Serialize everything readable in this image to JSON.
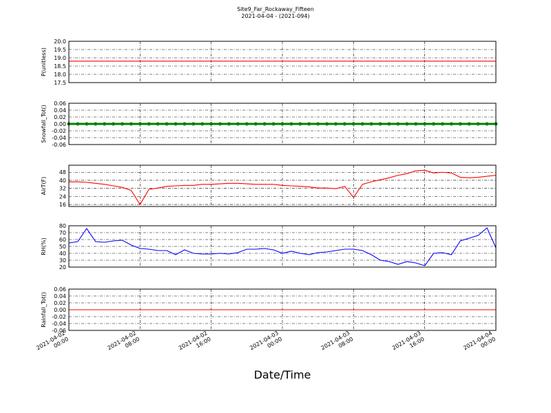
{
  "chart_data": {
    "title": "Site9_Far_Rockaway_Fifteen",
    "subtitle": "2021-04-04 - (2021-094)",
    "xlabel": "Date/Time",
    "xlim": [
      "2021-04-02 00:00",
      "2021-04-04 00:00"
    ],
    "xticks": [
      {
        "value": "2021-04-02 00:00",
        "label": "2021-04-02\n00:00"
      },
      {
        "value": "2021-04-02 08:00",
        "label": "2021-04-02\n08:00"
      },
      {
        "value": "2021-04-02 16:00",
        "label": "2021-04-02\n16:00"
      },
      {
        "value": "2021-04-03 00:00",
        "label": "2021-04-03\n00:00"
      },
      {
        "value": "2021-04-03 08:00",
        "label": "2021-04-03\n08:00"
      },
      {
        "value": "2021-04-03 16:00",
        "label": "2021-04-03\n16:00"
      },
      {
        "value": "2021-04-04 00:00",
        "label": "2021-04-04\n00:00"
      }
    ],
    "x": [
      "2021-04-02 00:00",
      "2021-04-02 01:00",
      "2021-04-02 02:00",
      "2021-04-02 03:00",
      "2021-04-02 04:00",
      "2021-04-02 05:00",
      "2021-04-02 06:00",
      "2021-04-02 07:00",
      "2021-04-02 08:00",
      "2021-04-02 09:00",
      "2021-04-02 10:00",
      "2021-04-02 11:00",
      "2021-04-02 12:00",
      "2021-04-02 13:00",
      "2021-04-02 14:00",
      "2021-04-02 15:00",
      "2021-04-02 16:00",
      "2021-04-02 17:00",
      "2021-04-02 18:00",
      "2021-04-02 19:00",
      "2021-04-02 20:00",
      "2021-04-02 21:00",
      "2021-04-02 22:00",
      "2021-04-02 23:00",
      "2021-04-03 00:00",
      "2021-04-03 01:00",
      "2021-04-03 02:00",
      "2021-04-03 03:00",
      "2021-04-03 04:00",
      "2021-04-03 05:00",
      "2021-04-03 06:00",
      "2021-04-03 07:00",
      "2021-04-03 08:00",
      "2021-04-03 09:00",
      "2021-04-03 10:00",
      "2021-04-03 11:00",
      "2021-04-03 12:00",
      "2021-04-03 13:00",
      "2021-04-03 14:00",
      "2021-04-03 15:00",
      "2021-04-03 16:00",
      "2021-04-03 17:00",
      "2021-04-03 18:00",
      "2021-04-03 19:00",
      "2021-04-03 20:00",
      "2021-04-03 21:00",
      "2021-04-03 22:00",
      "2021-04-03 23:00",
      "2021-04-04 00:00"
    ],
    "panels": [
      {
        "type": "line",
        "ylabel": "P(unitless)",
        "ylim": [
          17.5,
          20.0
        ],
        "yticks": [
          17.5,
          {
            "value": 18,
            "label": "18.0"
          },
          18.5,
          {
            "value": 19,
            "label": "19.0"
          },
          19.5,
          {
            "value": 20,
            "label": "20.0"
          }
        ],
        "series": [
          {
            "color": "#ff0000",
            "values": [
              18.8,
              18.8,
              18.8,
              18.8,
              18.8,
              18.8,
              18.8,
              18.8,
              18.8,
              18.8,
              18.8,
              18.8,
              18.8,
              18.8,
              18.8,
              18.8,
              18.8,
              18.8,
              18.8,
              18.8,
              18.8,
              18.8,
              18.8,
              18.8,
              18.8,
              18.8,
              18.8,
              18.8,
              18.8,
              18.8,
              18.8,
              18.8,
              18.8,
              18.8,
              18.8,
              18.8,
              18.8,
              18.8,
              18.8,
              18.8,
              18.8,
              18.8,
              18.8,
              18.8,
              18.8,
              18.8,
              18.8,
              18.8,
              18.8
            ]
          }
        ]
      },
      {
        "type": "line",
        "ylabel": "Snowfall_Tot()",
        "ylim": [
          -0.06,
          0.06
        ],
        "markers": true,
        "yticks": [
          {
            "value": -0.06,
            "label": "-0.06"
          },
          {
            "value": -0.04,
            "label": "-0.04"
          },
          {
            "value": -0.02,
            "label": "-0.02"
          },
          {
            "value": 0,
            "label": "0.00"
          },
          0.02,
          0.04,
          0.06
        ],
        "series": [
          {
            "color": "#008000",
            "values": [
              0,
              0,
              0,
              0,
              0,
              0,
              0,
              0,
              0,
              0,
              0,
              0,
              0,
              0,
              0,
              0,
              0,
              0,
              0,
              0,
              0,
              0,
              0,
              0,
              0,
              0,
              0,
              0,
              0,
              0,
              0,
              0,
              0,
              0,
              0,
              0,
              0,
              0,
              0,
              0,
              0,
              0,
              0,
              0,
              0,
              0,
              0,
              0,
              0
            ]
          }
        ]
      },
      {
        "type": "line",
        "ylabel": "AirT(F)",
        "ylim": [
          14,
          55
        ],
        "yticks": [
          16,
          24,
          32,
          40,
          48
        ],
        "series": [
          {
            "color": "#ff0000",
            "values": [
              38.5,
              38.5,
              38,
              37,
              36,
              34.5,
              33,
              30,
              16,
              31,
              32.3,
              34,
              34.5,
              35,
              35,
              36,
              36,
              36.5,
              37,
              37,
              36.5,
              36,
              36,
              36,
              35,
              34.5,
              34,
              33.5,
              32.3,
              32.3,
              31.7,
              34,
              23,
              36,
              38.5,
              40.5,
              42.5,
              45,
              46.6,
              49.4,
              50,
              47.3,
              48,
              47.3,
              43,
              42.5,
              43,
              44,
              45
            ]
          }
        ]
      },
      {
        "type": "line",
        "ylabel": "RH(%)",
        "ylim": [
          20,
          80
        ],
        "yticks": [
          20,
          30,
          40,
          50,
          60,
          70,
          80
        ],
        "series": [
          {
            "color": "#0000ff",
            "values": [
              55,
              57,
              76,
              57,
              56,
              58,
              59,
              52,
              47,
              46,
              44,
              44,
              38,
              45,
              40,
              39,
              39,
              40,
              39,
              41,
              46,
              46,
              47,
              45,
              40,
              43,
              40,
              38,
              41,
              42,
              44,
              46,
              46,
              44,
              38,
              30,
              28,
              24,
              28,
              26,
              22,
              40,
              41,
              38,
              58,
              62,
              66,
              77,
              48
            ]
          }
        ]
      },
      {
        "type": "line",
        "ylabel": "Rainfall_Tot()",
        "ylim": [
          -0.06,
          0.06
        ],
        "yticks": [
          {
            "value": -0.06,
            "label": "-0.06"
          },
          {
            "value": -0.04,
            "label": "-0.04"
          },
          {
            "value": -0.02,
            "label": "-0.02"
          },
          {
            "value": 0,
            "label": "0.00"
          },
          0.02,
          0.04,
          0.06
        ],
        "series": [
          {
            "color": "#ff0000",
            "values": [
              0,
              0,
              0,
              0,
              0,
              0,
              0,
              0,
              0,
              0,
              0,
              0,
              0,
              0,
              0,
              0,
              0,
              0,
              0,
              0,
              0,
              0,
              0,
              0,
              0,
              0,
              0,
              0,
              0,
              0,
              0,
              0,
              0,
              0,
              0,
              0,
              0,
              0,
              0,
              0,
              0,
              0,
              0,
              0,
              0,
              0,
              0,
              0,
              0
            ]
          }
        ]
      }
    ]
  }
}
